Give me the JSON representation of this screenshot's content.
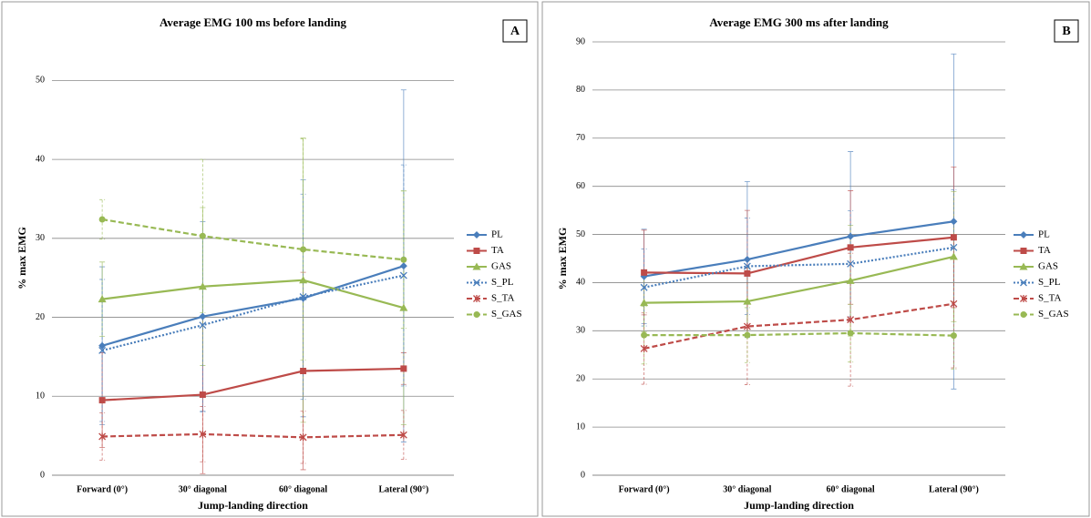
{
  "chart_data": [
    {
      "type": "line",
      "title": "Average EMG 100 ms before landing",
      "panel_label": "A",
      "x_label": "Jump-landing direction",
      "y_label": "% max EMG",
      "categories": [
        "Forward (0°)",
        "30° diagonal",
        "60° diagonal",
        "Lateral (90°)"
      ],
      "ylim": [
        0,
        55
      ],
      "yticks": [
        0,
        10,
        20,
        30,
        40,
        50
      ],
      "grid": true,
      "legend": "right",
      "series": [
        {
          "name": "PL",
          "color": "#4a7ebb",
          "dash": "solid",
          "marker": "diamond",
          "values": [
            16.4,
            20.1,
            22.4,
            26.5
          ],
          "errors": [
            10,
            12,
            15,
            22.3
          ]
        },
        {
          "name": "TA",
          "color": "#be4b48",
          "dash": "solid",
          "marker": "square",
          "values": [
            9.5,
            10.2,
            13.2,
            13.5
          ],
          "errors": [
            6,
            10,
            12.5,
            2
          ]
        },
        {
          "name": "GAS",
          "color": "#98b954",
          "dash": "solid",
          "marker": "triangle",
          "values": [
            22.3,
            23.9,
            24.7,
            21.2
          ],
          "errors": [
            4.7,
            10,
            18,
            14.8
          ]
        },
        {
          "name": "S_PL",
          "color": "#4a7ebb",
          "dash": "dotted",
          "marker": "x",
          "values": [
            15.8,
            19.0,
            22.6,
            25.3
          ],
          "errors": [
            9,
            11,
            13,
            14
          ]
        },
        {
          "name": "S_TA",
          "color": "#be4b48",
          "dash": "dashed",
          "marker": "star",
          "values": [
            4.9,
            5.2,
            4.8,
            5.1
          ],
          "errors": [
            3,
            3.5,
            3.3,
            3.1
          ]
        },
        {
          "name": "S_GAS",
          "color": "#98b954",
          "dash": "dashed",
          "marker": "circle",
          "values": [
            32.4,
            30.3,
            28.6,
            27.3
          ],
          "errors": [
            2.5,
            9.7,
            14,
            8.7
          ]
        }
      ]
    },
    {
      "type": "line",
      "title": "Average EMG 300 ms after landing",
      "panel_label": "B",
      "x_label": "Jump-landing direction",
      "y_label": "% max EMG",
      "categories": [
        "Forward (0°)",
        "30° diagonal",
        "60° diagonal",
        "Lateral (90°)"
      ],
      "ylim": [
        0,
        90
      ],
      "yticks": [
        0,
        10,
        20,
        30,
        40,
        50,
        60,
        70,
        80,
        90
      ],
      "grid": true,
      "legend": "right",
      "series": [
        {
          "name": "PL",
          "color": "#4a7ebb",
          "dash": "solid",
          "marker": "diamond",
          "values": [
            41.3,
            44.8,
            49.6,
            52.7
          ],
          "errors": [
            9.8,
            16.2,
            17.6,
            34.8
          ]
        },
        {
          "name": "TA",
          "color": "#be4b48",
          "dash": "solid",
          "marker": "square",
          "values": [
            42.1,
            41.9,
            47.3,
            49.4
          ],
          "errors": [
            8.8,
            13.1,
            11.8,
            14.6
          ]
        },
        {
          "name": "GAS",
          "color": "#98b954",
          "dash": "solid",
          "marker": "triangle",
          "values": [
            35.8,
            36.1,
            40.4,
            45.4
          ],
          "errors": [
            6,
            7,
            11.5,
            13.5
          ]
        },
        {
          "name": "S_PL",
          "color": "#4a7ebb",
          "dash": "dotted",
          "marker": "x",
          "values": [
            39.0,
            43.4,
            43.9,
            47.3
          ],
          "errors": [
            8,
            10,
            11,
            12
          ]
        },
        {
          "name": "S_TA",
          "color": "#be4b48",
          "dash": "dashed",
          "marker": "star",
          "values": [
            26.3,
            30.9,
            32.3,
            35.6
          ],
          "errors": [
            7.4,
            12.1,
            13.8,
            13.3
          ]
        },
        {
          "name": "S_GAS",
          "color": "#98b954",
          "dash": "dashed",
          "marker": "circle",
          "values": [
            29.1,
            29.1,
            29.5,
            29.0
          ],
          "errors": [
            6,
            5.7,
            6,
            7
          ]
        }
      ]
    }
  ]
}
